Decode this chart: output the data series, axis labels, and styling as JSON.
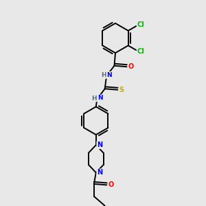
{
  "bg_color": "#e8e8e8",
  "bond_color": "#000000",
  "atom_colors": {
    "Cl": "#00bb00",
    "O": "#ff0000",
    "N": "#0000ff",
    "S": "#ccaa00",
    "H": "#507080",
    "C": "#000000"
  }
}
